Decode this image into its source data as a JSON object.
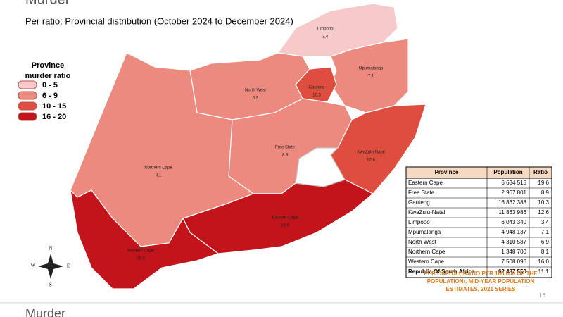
{
  "header": {
    "title": "Murder",
    "subtitle": "Per ratio: Provincial distribution (October 2024 to December 2024)"
  },
  "legend": {
    "title": "Province murder ratio",
    "items": [
      {
        "label": "0 - 5",
        "color": "#f6c9cb"
      },
      {
        "label": "6 - 9",
        "color": "#ec8a7f"
      },
      {
        "label": "10 - 15",
        "color": "#df4d3e"
      },
      {
        "label": "16 - 20",
        "color": "#c4141b"
      }
    ]
  },
  "map": {
    "provinces": [
      {
        "name": "Limpopo",
        "ratio": "3,4",
        "color": "#f6c9cb"
      },
      {
        "name": "Mpumalanga",
        "ratio": "7,1",
        "color": "#ec8a7f"
      },
      {
        "name": "Gauteng",
        "ratio": "10,3",
        "color": "#df4d3e"
      },
      {
        "name": "North West",
        "ratio": "6,9",
        "color": "#ec8a7f"
      },
      {
        "name": "Free State",
        "ratio": "8,9",
        "color": "#ec8a7f"
      },
      {
        "name": "KwaZulu-Natal",
        "ratio": "12,6",
        "color": "#df4d3e"
      },
      {
        "name": "Northern Cape",
        "ratio": "8,1",
        "color": "#ec8a7f"
      },
      {
        "name": "Eastern Cape",
        "ratio": "19,6",
        "color": "#c4141b"
      },
      {
        "name": "Western Cape",
        "ratio": "16.0",
        "color": "#c4141b"
      }
    ],
    "compass": [
      "N",
      "S",
      "E",
      "W"
    ]
  },
  "table": {
    "header": [
      "Province",
      "Population",
      "Ratio"
    ],
    "rows": [
      [
        "Eastern Cape",
        "6 634 515",
        "19,6"
      ],
      [
        "Free State",
        "2 967 801",
        "8,9"
      ],
      [
        "Gauteng",
        "16 862 388",
        "10,3"
      ],
      [
        "KwaZulu-Natal",
        "11 863 986",
        "12,6"
      ],
      [
        "Limpopo",
        "6 043 340",
        "3,4"
      ],
      [
        "Mpumalanga",
        "4 948 137",
        "7,1"
      ],
      [
        "North West",
        "4 310 587",
        "6,9"
      ],
      [
        "Northern Cape",
        "1 348 700",
        "8,1"
      ],
      [
        "Western Cape",
        "7 508 096",
        "16,0"
      ]
    ],
    "total": [
      "Republic Of South Africa",
      "62 487 550",
      "11,1"
    ]
  },
  "footnote": "PER CAPITA (*RATIO PER 100 000 OF THE POPULATION). MID-YEAR POPULATION ESTIMATES, 2021 SERIES",
  "page_number": "16",
  "next_slide_title": "Murder"
}
